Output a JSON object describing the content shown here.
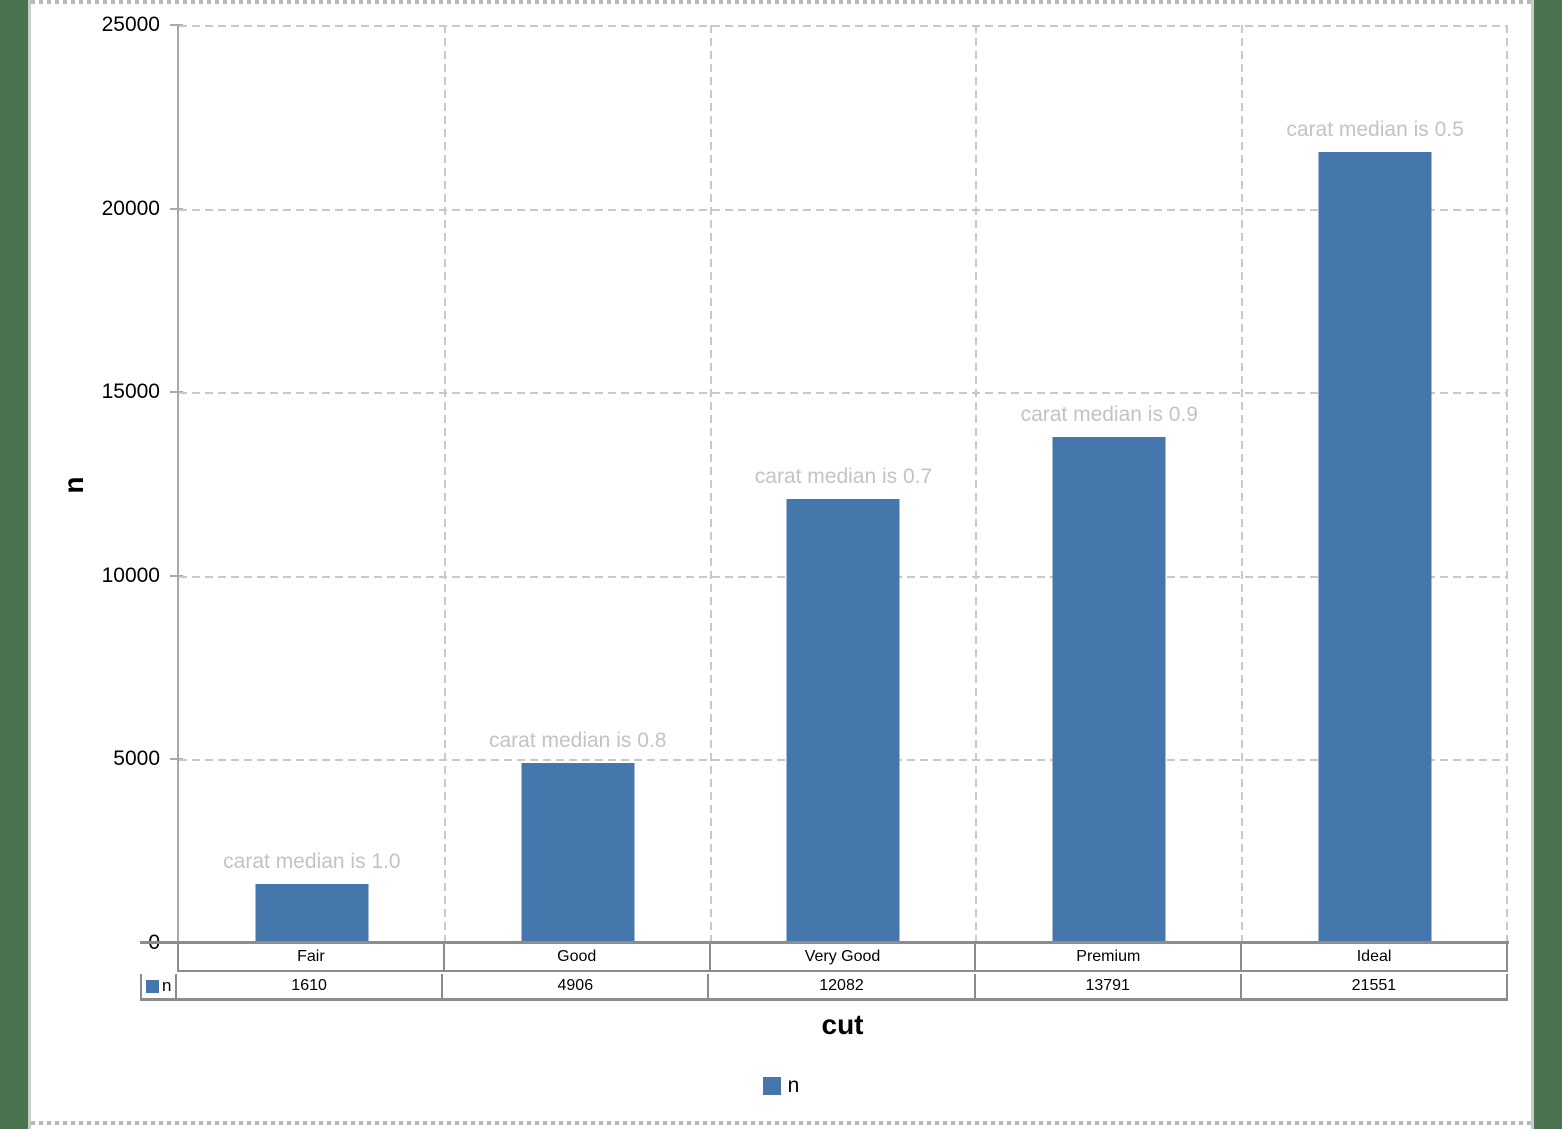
{
  "window": {
    "background_color": "#4a7350",
    "selection_border_style": "marching-ants"
  },
  "chart_data": {
    "type": "bar",
    "title": "",
    "xlabel": "cut",
    "ylabel": "n",
    "categories": [
      "Fair",
      "Good",
      "Very Good",
      "Premium",
      "Ideal"
    ],
    "series": [
      {
        "name": "n",
        "color": "#4577ac",
        "values": [
          1610,
          4906,
          12082,
          13791,
          21551
        ]
      }
    ],
    "bar_annotations": [
      "carat median is 1.0",
      "carat median is 0.8",
      "carat median is 0.7",
      "carat median is 0.9",
      "carat median is 0.5"
    ],
    "annotation_color": "#c3c3c3",
    "ylim": [
      0,
      25000
    ],
    "ytick_interval": 5000,
    "yticks": [
      "25000",
      "20000",
      "15000",
      "10000",
      "5000",
      "0"
    ],
    "grid": true,
    "gridline_color": "#c9c9c9",
    "legend": {
      "position": "bottom",
      "label": "n"
    },
    "data_table": {
      "row_label": "n"
    }
  }
}
